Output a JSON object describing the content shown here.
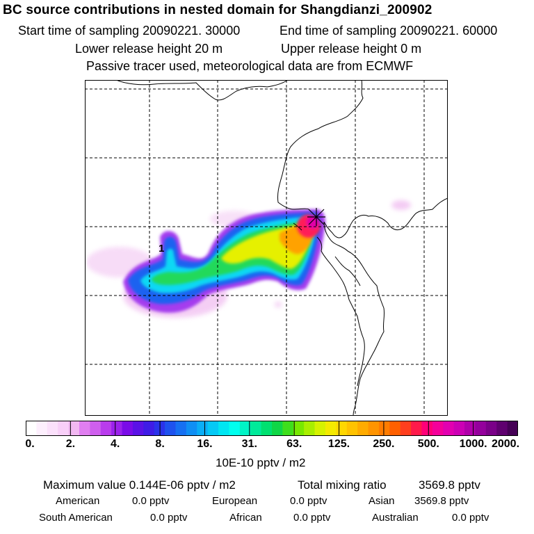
{
  "title": "BC  source contributions in nested domain for Shangdianzi_200902",
  "sampling": {
    "start": "Start time of sampling 20090221. 30000",
    "end": "End time of sampling 20090221. 60000"
  },
  "release": {
    "lower": "Lower release height   20 m",
    "upper": "Upper release height    0 m"
  },
  "tracer_note": "Passive tracer used, meteorological data are from ECMWF",
  "map": {
    "station_marker": "star-symbol",
    "contour_label": "1",
    "border_color": "#000000",
    "grid_color": "#000000"
  },
  "colorbar": {
    "ticks": [
      "0.",
      "2.",
      "4.",
      "8.",
      "16.",
      "31.",
      "63.",
      "125.",
      "250.",
      "500.",
      "1000.",
      "2000."
    ],
    "unit": "10E-10 pptv / m2",
    "colors": [
      "#ffffff",
      "#fdeffd",
      "#fbe0fb",
      "#f8cff8",
      "#f2b8f2",
      "#e07ef0",
      "#cf5fee",
      "#b93ced",
      "#9b22ec",
      "#7a0ce8",
      "#5a12e6",
      "#3f1ce6",
      "#2a33ea",
      "#1e52ee",
      "#1670f2",
      "#0f8ff4",
      "#0aaef6",
      "#05c9f5",
      "#00e6f2",
      "#00ffee",
      "#00f4c6",
      "#00ea9a",
      "#00e070",
      "#10d646",
      "#3ede1c",
      "#78e800",
      "#a9ee00",
      "#d6f200",
      "#f4ea00",
      "#ffd700",
      "#ffc200",
      "#ffab00",
      "#ff9400",
      "#ff7c00",
      "#ff6000",
      "#ff3f1e",
      "#ff1a4a",
      "#ff0078",
      "#f4009a",
      "#e200b0",
      "#cc00b4",
      "#b000aa",
      "#94009c",
      "#7a0088",
      "#5f006f",
      "#450055"
    ]
  },
  "summary": {
    "max_label": "Maximum value  0.144E-06 pptv / m2",
    "total_label": "Total mixing ratio",
    "total_value": "3569.8 pptv"
  },
  "regions": [
    {
      "name": "American",
      "value": "0.0 pptv"
    },
    {
      "name": "European",
      "value": "0.0 pptv"
    },
    {
      "name": "Asian",
      "value": "3569.8 pptv"
    },
    {
      "name": "South American",
      "value": "0.0 pptv"
    },
    {
      "name": "African",
      "value": "0.0 pptv"
    },
    {
      "name": "Australian",
      "value": "0.0 pptv"
    }
  ]
}
